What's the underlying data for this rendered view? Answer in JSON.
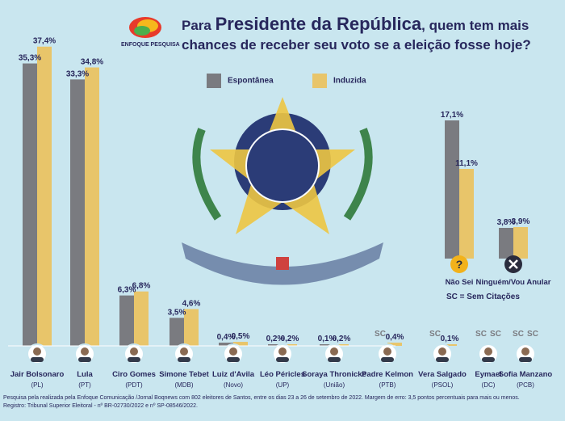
{
  "logo_text": "ENFOQUE PESQUISA",
  "chart_data": {
    "type": "bar",
    "title_prefix": "Para",
    "title_emphasis": "Presidente da República",
    "title_suffix": ", quem tem mais chances de receber seu voto se a eleição fosse hoje?",
    "ylim": [
      0,
      40
    ],
    "grid": false,
    "legend_position": "top",
    "series": [
      {
        "name": "Espontânea",
        "color": "#7a7b80"
      },
      {
        "name": "Induzida",
        "color": "#e8c56a"
      }
    ],
    "candidates": [
      {
        "name": "Jair Bolsonaro",
        "party": "(PL)",
        "esp": 35.3,
        "ind": 37.4,
        "esp_label": "35,3%",
        "ind_label": "37,4%"
      },
      {
        "name": "Lula",
        "party": "(PT)",
        "esp": 33.3,
        "ind": 34.8,
        "esp_label": "33,3%",
        "ind_label": "34,8%"
      },
      {
        "name": "Ciro Gomes",
        "party": "(PDT)",
        "esp": 6.3,
        "ind": 6.8,
        "esp_label": "6,3%",
        "ind_label": "6,8%"
      },
      {
        "name": "Simone Tebet",
        "party": "(MDB)",
        "esp": 3.5,
        "ind": 4.6,
        "esp_label": "3,5%",
        "ind_label": "4,6%"
      },
      {
        "name": "Luiz d'Avila",
        "party": "(Novo)",
        "esp": 0.4,
        "ind": 0.5,
        "esp_label": "0,4%",
        "ind_label": "0,5%"
      },
      {
        "name": "Léo Péricles",
        "party": "(UP)",
        "esp": 0.2,
        "ind": 0.2,
        "esp_label": "0,2%",
        "ind_label": "0,2%"
      },
      {
        "name": "Soraya Thronicke",
        "party": "(União)",
        "esp": 0.1,
        "ind": 0.2,
        "esp_label": "0,1%",
        "ind_label": "0,2%"
      },
      {
        "name": "Padre Kelmon",
        "party": "(PTB)",
        "esp": null,
        "ind": 0.4,
        "esp_label": "SC",
        "ind_label": "0,4%"
      },
      {
        "name": "Vera Salgado",
        "party": "(PSOL)",
        "esp": null,
        "ind": 0.1,
        "esp_label": "SC",
        "ind_label": "0,1%"
      },
      {
        "name": "Eymael",
        "party": "(DC)",
        "esp": null,
        "ind": null,
        "esp_label": "SC",
        "ind_label": "SC"
      },
      {
        "name": "Sofia Manzano",
        "party": "(PCB)",
        "esp": null,
        "ind": null,
        "esp_label": "SC",
        "ind_label": "SC"
      }
    ],
    "others": [
      {
        "name": "Não Sei",
        "esp": 17.1,
        "ind": 11.1,
        "esp_label": "17,1%",
        "ind_label": "11,1%",
        "icon": "question-icon"
      },
      {
        "name": "Ninguém/Vou Anular",
        "esp": 3.8,
        "ind": 3.9,
        "esp_label": "3,8%",
        "ind_label": "3,9%",
        "icon": "x-icon"
      }
    ],
    "sc_note": "SC = Sem Citações"
  },
  "footer": {
    "line1": "Pesquisa pela realizada pela Enfoque Comunicação /Jornal Boqnews com 802 eleitores de Santos, entre os dias 23 a 26 de setembro de 2022.  Margem de erro: 3,5 pontos percentuais para mais ou menos.",
    "line2": "Registro: Tribunal Superior Eleitoral - nº BR-02730/2022 e nº SP-08546/2022."
  }
}
